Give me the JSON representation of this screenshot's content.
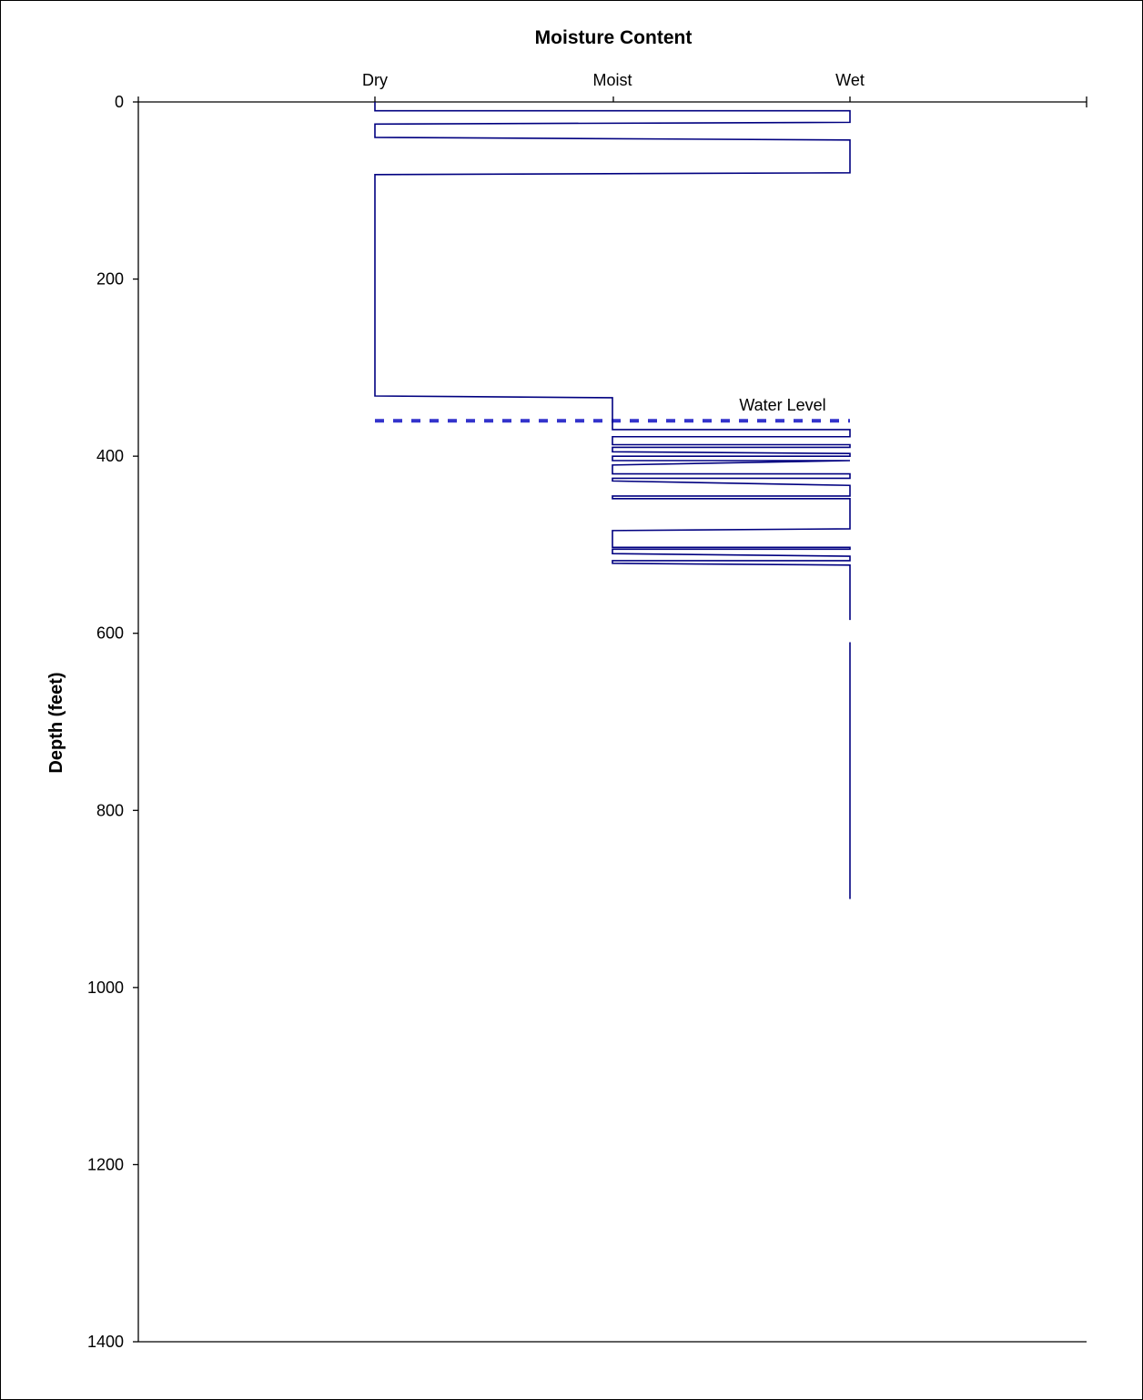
{
  "chart_data": {
    "type": "line",
    "title": "Moisture Content",
    "ylabel": "Depth (feet)",
    "xlabel": "",
    "x_categories": [
      "Dry",
      "Moist",
      "Wet"
    ],
    "ylim": [
      0,
      1400
    ],
    "y_inverted": true,
    "y_ticks": [
      0,
      200,
      400,
      600,
      800,
      1000,
      1200,
      1400
    ],
    "grid": false,
    "line_color": "#000080",
    "water_level": {
      "label": "Water Level",
      "depth": 360,
      "color": "#3333cc"
    },
    "profile_segments": [
      [
        {
          "x": 0,
          "y": 0
        },
        {
          "x": 0,
          "y": 10
        },
        {
          "x": 2,
          "y": 10
        },
        {
          "x": 2,
          "y": 23
        },
        {
          "x": 0,
          "y": 25
        },
        {
          "x": 0,
          "y": 40
        },
        {
          "x": 2,
          "y": 43
        },
        {
          "x": 2,
          "y": 80
        },
        {
          "x": 0,
          "y": 82
        },
        {
          "x": 0,
          "y": 332
        },
        {
          "x": 1,
          "y": 334
        },
        {
          "x": 1,
          "y": 370
        },
        {
          "x": 2,
          "y": 370
        },
        {
          "x": 2,
          "y": 378
        },
        {
          "x": 1,
          "y": 378
        },
        {
          "x": 1,
          "y": 387
        },
        {
          "x": 2,
          "y": 387
        },
        {
          "x": 2,
          "y": 390
        },
        {
          "x": 1,
          "y": 390
        },
        {
          "x": 1,
          "y": 395
        },
        {
          "x": 2,
          "y": 397
        },
        {
          "x": 2,
          "y": 400
        },
        {
          "x": 1,
          "y": 400
        },
        {
          "x": 1,
          "y": 405
        },
        {
          "x": 2,
          "y": 405
        },
        {
          "x": 1,
          "y": 410
        },
        {
          "x": 1,
          "y": 420
        },
        {
          "x": 2,
          "y": 420
        },
        {
          "x": 2,
          "y": 425
        },
        {
          "x": 1,
          "y": 425
        },
        {
          "x": 1,
          "y": 428
        },
        {
          "x": 2,
          "y": 433
        },
        {
          "x": 2,
          "y": 445
        },
        {
          "x": 1,
          "y": 445
        },
        {
          "x": 1,
          "y": 448
        },
        {
          "x": 2,
          "y": 448
        },
        {
          "x": 2,
          "y": 482
        },
        {
          "x": 1,
          "y": 484
        },
        {
          "x": 1,
          "y": 503
        },
        {
          "x": 2,
          "y": 503
        },
        {
          "x": 2,
          "y": 505
        },
        {
          "x": 1,
          "y": 505
        },
        {
          "x": 1,
          "y": 510
        },
        {
          "x": 2,
          "y": 513
        },
        {
          "x": 2,
          "y": 518
        },
        {
          "x": 1,
          "y": 518
        },
        {
          "x": 1,
          "y": 521
        },
        {
          "x": 2,
          "y": 523
        },
        {
          "x": 2,
          "y": 585
        }
      ],
      [
        {
          "x": 2,
          "y": 610
        },
        {
          "x": 2,
          "y": 900
        }
      ]
    ]
  }
}
